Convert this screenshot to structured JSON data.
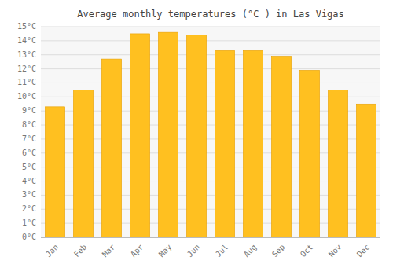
{
  "chart_data": {
    "type": "bar",
    "title": "Average monthly temperatures (°C ) in Las Vigas",
    "categories": [
      "Jan",
      "Feb",
      "Mar",
      "Apr",
      "May",
      "Jun",
      "Jul",
      "Aug",
      "Sep",
      "Oct",
      "Nov",
      "Dec"
    ],
    "values": [
      9.3,
      10.5,
      12.7,
      14.5,
      14.6,
      14.4,
      13.3,
      13.3,
      12.9,
      11.9,
      10.5,
      9.5
    ],
    "color": "#FFC020",
    "ylim": [
      0,
      15
    ],
    "yticks": [
      {
        "value": 0,
        "label": "0°C"
      },
      {
        "value": 1,
        "label": "1°C"
      },
      {
        "value": 2,
        "label": "2°C"
      },
      {
        "value": 3,
        "label": "3°C"
      },
      {
        "value": 4,
        "label": "4°C"
      },
      {
        "value": 5,
        "label": "5°C"
      },
      {
        "value": 6,
        "label": "6°C"
      },
      {
        "value": 7,
        "label": "7°C"
      },
      {
        "value": 8,
        "label": "8°C"
      },
      {
        "value": 9,
        "label": "9°C"
      },
      {
        "value": 10,
        "label": "10°C"
      },
      {
        "value": 11,
        "label": "11°C"
      },
      {
        "value": 12,
        "label": "12°C"
      },
      {
        "value": 13,
        "label": "13°C"
      },
      {
        "value": 14,
        "label": "14°C"
      },
      {
        "value": 15,
        "label": "15°C"
      }
    ],
    "grid": true
  }
}
